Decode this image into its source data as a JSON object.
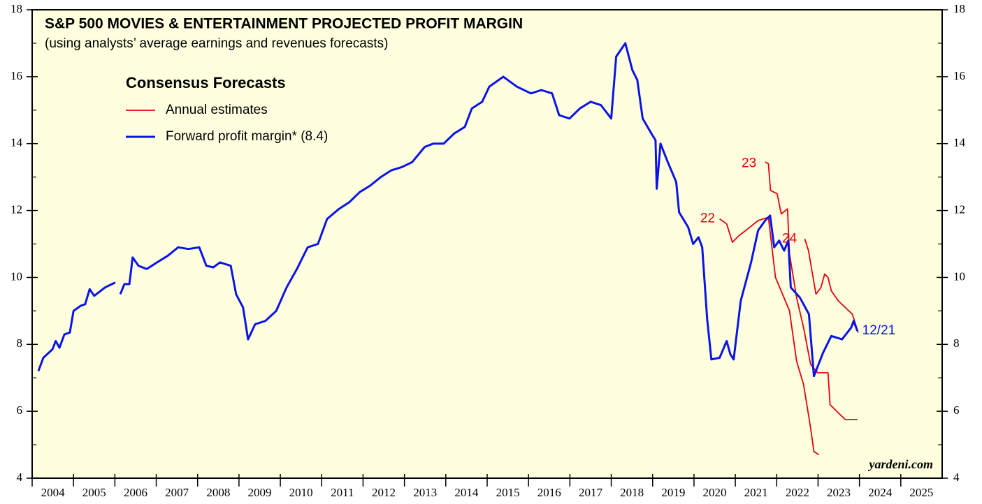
{
  "chart_data": {
    "type": "line",
    "title": "S&P 500 MOVIES & ENTERTAINMENT PROJECTED PROFIT MARGIN",
    "subtitle": "(using analysts’ average earnings and revenues forecasts)",
    "legend_title": "Consensus Forecasts",
    "source": "yardeni.com",
    "xlim": [
      2004,
      2026
    ],
    "xticks": [
      2004,
      2005,
      2006,
      2007,
      2008,
      2009,
      2010,
      2011,
      2012,
      2013,
      2014,
      2015,
      2016,
      2017,
      2018,
      2019,
      2020,
      2021,
      2022,
      2023,
      2024,
      2025
    ],
    "ylim": [
      4,
      18
    ],
    "yticks": [
      4,
      6,
      8,
      10,
      12,
      14,
      16,
      18
    ],
    "series": [
      {
        "name": "Annual estimates",
        "color": "#e8000b",
        "x": [
          2020.62,
          2020.79,
          2020.93,
          2021.09,
          2021.3,
          2021.55,
          2021.8,
          2021.97,
          2022.14,
          2022.31,
          2022.48,
          2022.65,
          2022.82,
          2022.9,
          2023.02,
          null,
          2021.72,
          2021.8,
          2021.85,
          2022.01,
          2022.11,
          2022.26,
          2022.31,
          2022.48,
          2022.65,
          2022.82,
          2022.99,
          2023.24,
          2023.29,
          2023.49,
          2023.66,
          2023.95,
          null,
          2022.68,
          2022.77,
          2022.85,
          2022.95,
          2023.07,
          2023.16,
          2023.24,
          2023.32,
          2023.49,
          2023.66,
          2023.83,
          2023.97
        ],
        "values": [
          11.75,
          11.6,
          11.05,
          11.25,
          11.45,
          11.7,
          11.8,
          10.0,
          9.5,
          9.0,
          7.5,
          6.8,
          5.5,
          4.8,
          4.7,
          null,
          13.45,
          13.4,
          12.6,
          12.5,
          11.9,
          12.05,
          10.7,
          9.4,
          8.5,
          7.4,
          7.15,
          7.15,
          6.2,
          5.95,
          5.75,
          5.75,
          null,
          11.15,
          10.8,
          10.2,
          9.5,
          9.7,
          10.1,
          10.0,
          9.6,
          9.3,
          9.1,
          8.9,
          8.35
        ]
      },
      {
        "name": "Forward profit margin* (8.4)",
        "color": "#0a14e6",
        "x": [
          2004.15,
          2004.27,
          2004.49,
          2004.57,
          2004.66,
          2004.78,
          2004.91,
          2005.0,
          2005.17,
          2005.28,
          2005.39,
          2005.5,
          2005.76,
          2006.01,
          null,
          2006.13,
          2006.23,
          2006.35,
          2006.43,
          2006.57,
          2006.77,
          2007.02,
          2007.28,
          2007.53,
          2007.78,
          2008.04,
          2008.21,
          2008.38,
          2008.54,
          2008.8,
          2008.93,
          2009.1,
          2009.22,
          2009.39,
          2009.64,
          2009.9,
          2010.15,
          2010.4,
          2010.66,
          2010.91,
          2011.13,
          2011.42,
          2011.67,
          2011.92,
          2012.18,
          2012.43,
          2012.68,
          2012.94,
          2013.19,
          2013.49,
          2013.7,
          2013.95,
          2014.2,
          2014.46,
          2014.63,
          2014.88,
          2015.05,
          2015.39,
          2015.72,
          2016.06,
          2016.31,
          2016.57,
          2016.74,
          2016.99,
          2017.24,
          2017.5,
          2017.75,
          2018.0,
          2018.12,
          2018.34,
          2018.51,
          2018.63,
          2018.76,
          2018.97,
          2019.07,
          2019.1,
          2019.19,
          2019.35,
          2019.57,
          2019.64,
          2019.86,
          2019.98,
          2020.11,
          2020.2,
          2020.32,
          2020.42,
          2020.62,
          2020.79,
          2020.88,
          2020.96,
          2021.13,
          2021.38,
          2021.55,
          2021.72,
          2021.84,
          2021.94,
          2022.06,
          2022.18,
          2022.28,
          2022.34,
          2022.56,
          2022.78,
          2022.9,
          2023.12,
          2023.32,
          2023.58,
          2023.8,
          2023.86,
          2023.95
        ],
        "values": [
          7.2,
          7.6,
          7.85,
          8.1,
          7.9,
          8.3,
          8.35,
          9.0,
          9.15,
          9.2,
          9.65,
          9.45,
          9.7,
          9.85,
          null,
          9.5,
          9.8,
          9.8,
          10.6,
          10.35,
          10.25,
          10.45,
          10.65,
          10.9,
          10.85,
          10.9,
          10.35,
          10.3,
          10.45,
          10.35,
          9.5,
          9.1,
          8.15,
          8.6,
          8.7,
          9.0,
          9.7,
          10.25,
          10.9,
          11.0,
          11.75,
          12.05,
          12.25,
          12.55,
          12.75,
          13.0,
          13.2,
          13.3,
          13.45,
          13.9,
          14.0,
          14.0,
          14.3,
          14.5,
          15.05,
          15.25,
          15.7,
          16.0,
          15.7,
          15.5,
          15.6,
          15.5,
          14.85,
          14.75,
          15.05,
          15.25,
          15.15,
          14.75,
          16.6,
          17.0,
          16.2,
          15.9,
          14.75,
          14.3,
          14.1,
          12.65,
          14.0,
          13.5,
          12.85,
          11.95,
          11.5,
          11.0,
          11.2,
          10.9,
          8.75,
          7.55,
          7.6,
          8.1,
          7.7,
          7.55,
          9.3,
          10.45,
          11.4,
          11.7,
          11.85,
          10.9,
          11.1,
          10.8,
          11.1,
          9.7,
          9.4,
          8.9,
          7.05,
          7.75,
          8.25,
          8.15,
          8.5,
          8.7,
          8.4
        ]
      }
    ],
    "annotations": [
      {
        "text": "22",
        "x": 2020.33,
        "y": 11.75,
        "color": "#e8000b"
      },
      {
        "text": "23",
        "x": 2021.33,
        "y": 13.4,
        "color": "#e8000b"
      },
      {
        "text": "24",
        "x": 2022.31,
        "y": 11.15,
        "color": "#e8000b"
      },
      {
        "text": "12/21",
        "x": 2024.47,
        "y": 8.4,
        "color": "#0a14e6"
      }
    ]
  }
}
